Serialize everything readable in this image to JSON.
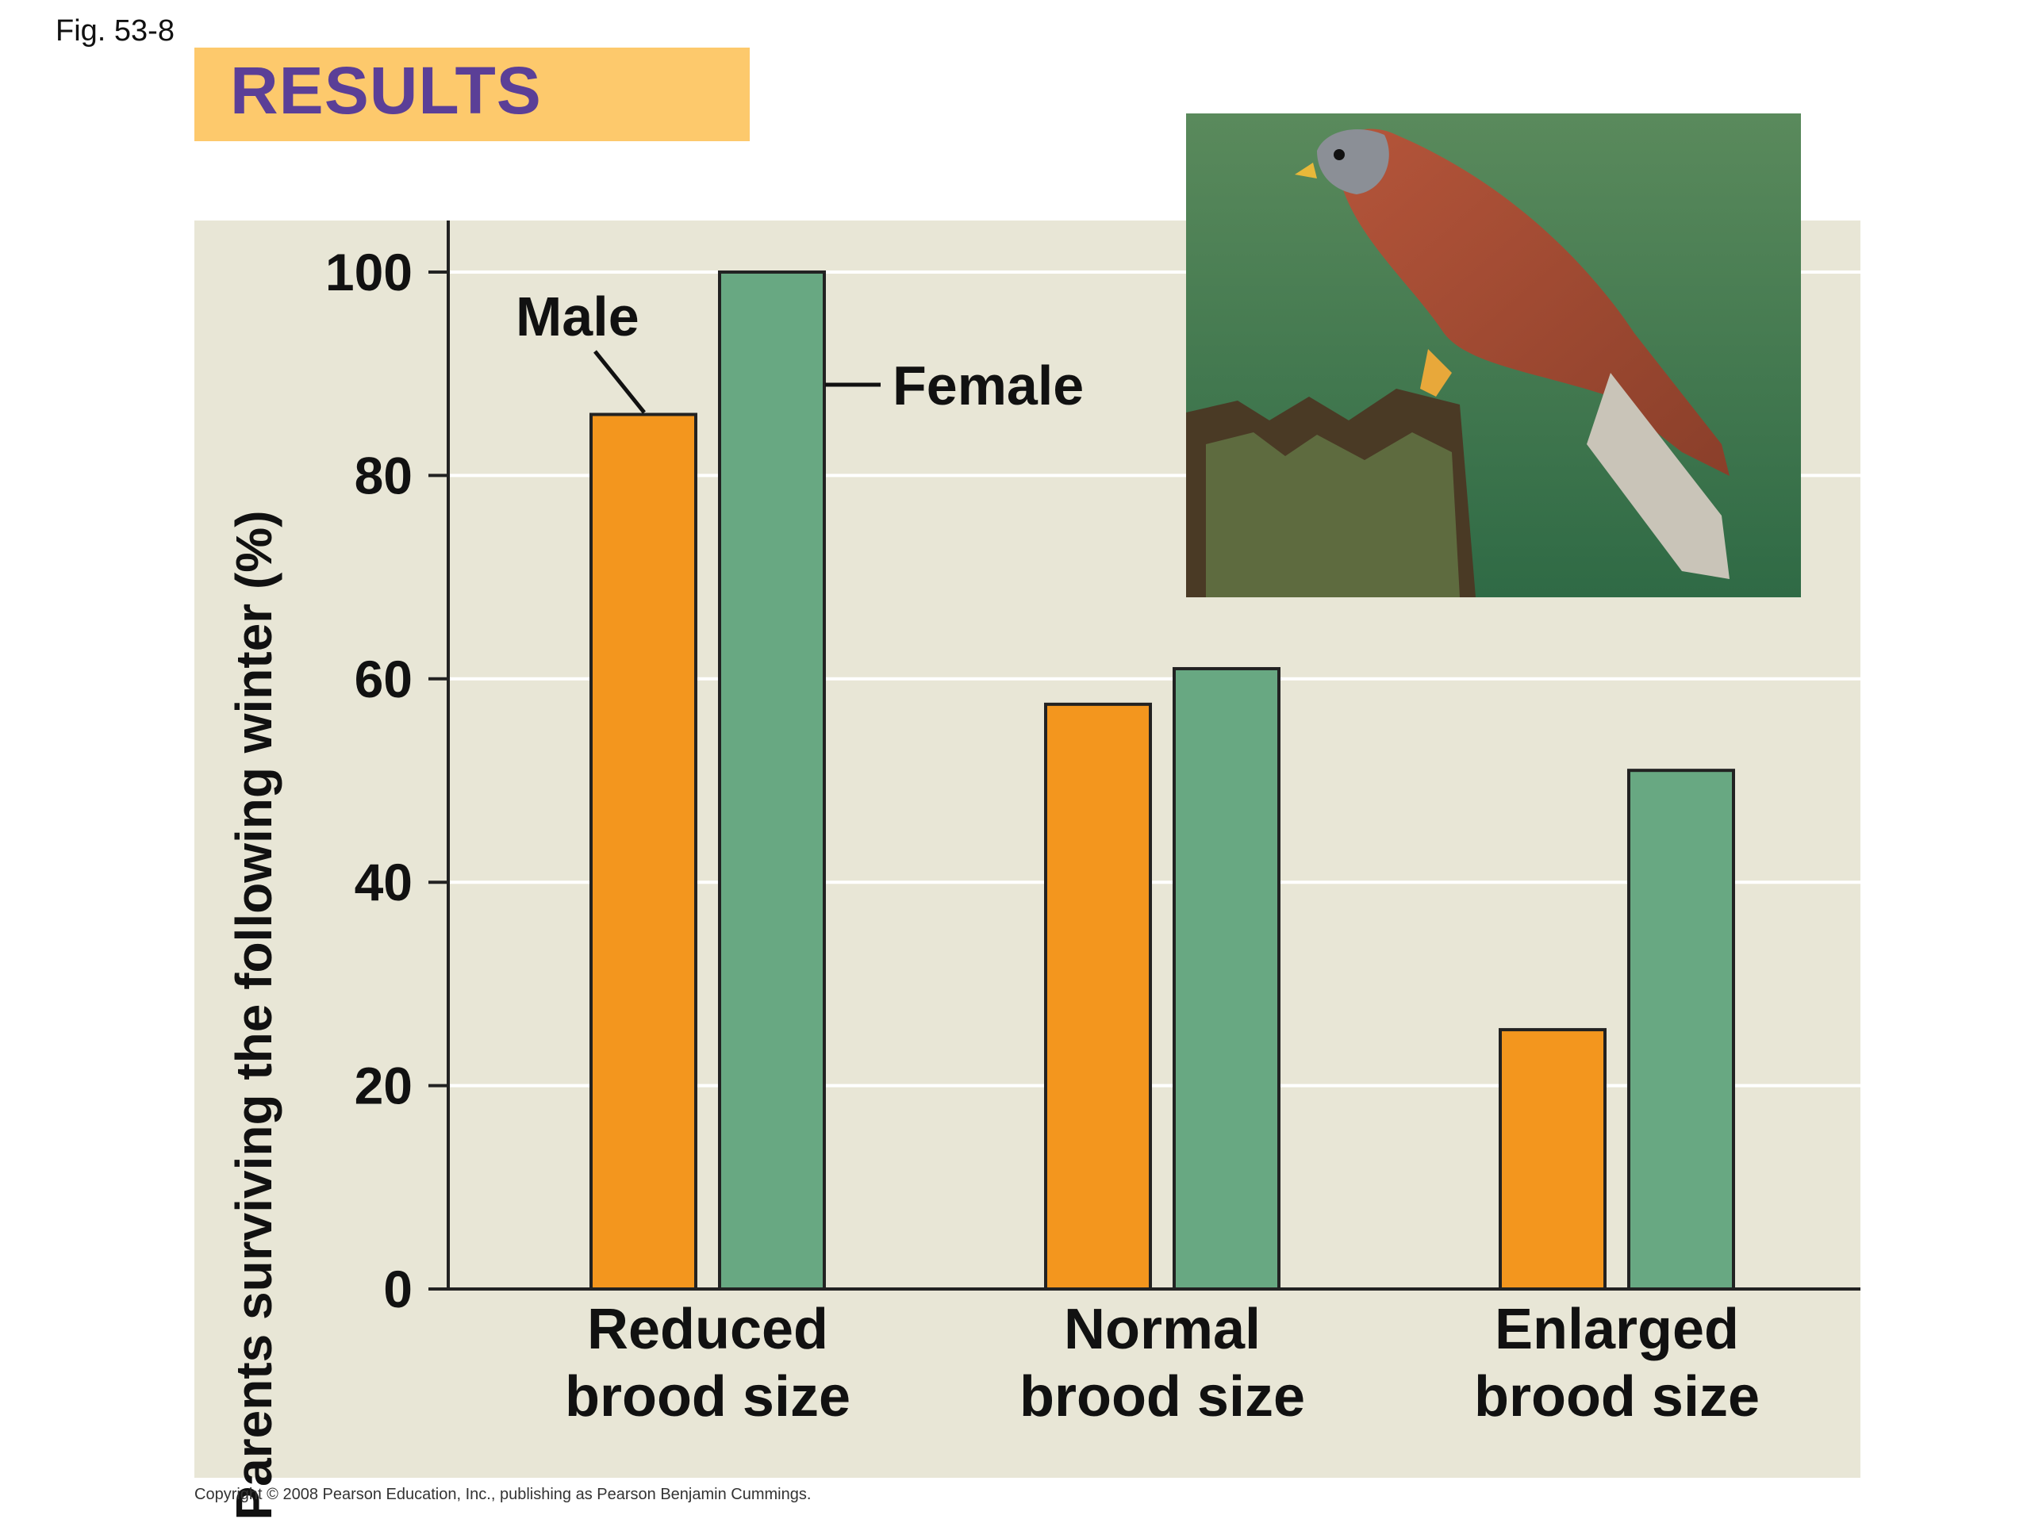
{
  "figure": {
    "label": "Fig. 53-8",
    "banner": "RESULTS",
    "copyright": "Copyright © 2008 Pearson Education, Inc., publishing as Pearson Benjamin Cummings."
  },
  "colors": {
    "male": "#f3961e",
    "female": "#68a882",
    "plot_background": "#e8e6d6",
    "banner": "#fdc96c",
    "banner_text": "#5b3f97"
  },
  "chart_data": {
    "type": "bar",
    "categories": [
      [
        "Reduced",
        "brood size"
      ],
      [
        "Normal",
        "brood size"
      ],
      [
        "Enlarged",
        "brood size"
      ]
    ],
    "series": [
      {
        "name": "Male",
        "values": [
          86,
          57.5,
          25.5
        ]
      },
      {
        "name": "Female",
        "values": [
          100,
          61,
          51
        ]
      }
    ],
    "ylabel": "Parents surviving the following winter (%)",
    "ylim": [
      0,
      100
    ],
    "yticks": [
      0,
      20,
      40,
      60,
      80,
      100
    ],
    "grid": true,
    "annotations": [
      "Male",
      "Female"
    ]
  },
  "photo": {
    "subject": "kestrel-on-post"
  }
}
